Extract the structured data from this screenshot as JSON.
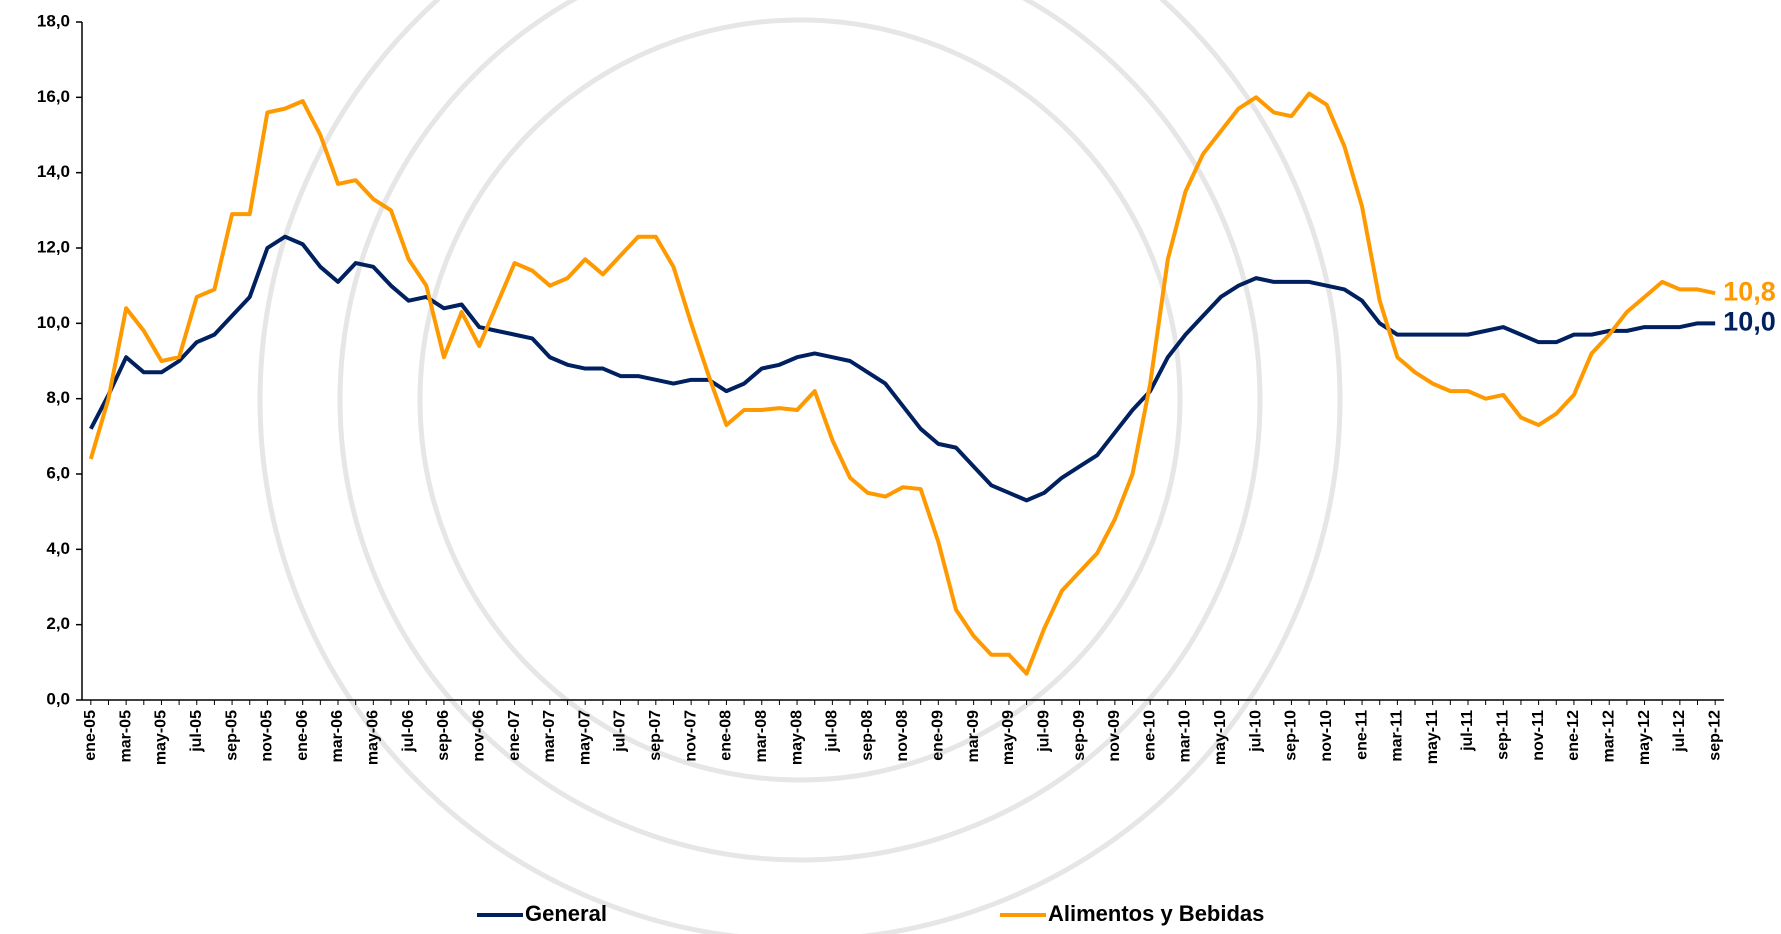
{
  "chart_data": {
    "type": "line",
    "categories": [
      "ene-05",
      null,
      "mar-05",
      null,
      "may-05",
      null,
      "jul-05",
      null,
      "sep-05",
      null,
      "nov-05",
      null,
      "ene-06",
      null,
      "mar-06",
      null,
      "may-06",
      null,
      "jul-06",
      null,
      "sep-06",
      null,
      "nov-06",
      null,
      "ene-07",
      null,
      "mar-07",
      null,
      "may-07",
      null,
      "jul-07",
      null,
      "sep-07",
      null,
      "nov-07",
      null,
      "ene-08",
      null,
      "mar-08",
      null,
      "may-08",
      null,
      "jul-08",
      null,
      "sep-08",
      null,
      "nov-08",
      null,
      "ene-09",
      null,
      "mar-09",
      null,
      "may-09",
      null,
      "jul-09",
      null,
      "sep-09",
      null,
      "nov-09",
      null,
      "ene-10",
      null,
      "mar-10",
      null,
      "may-10",
      null,
      "jul-10",
      null,
      "sep-10",
      null,
      "nov-10",
      null,
      "ene-11",
      null,
      "mar-11",
      null,
      "may-11",
      null,
      "jul-11",
      null,
      "sep-11",
      null,
      "nov-11",
      null,
      "ene-12",
      null,
      "mar-12",
      null,
      "may-12",
      null,
      "jul-12",
      null,
      "sep-12"
    ],
    "series": [
      {
        "name": "General",
        "color": "#002060",
        "values": [
          7.2,
          8.1,
          9.1,
          8.7,
          8.7,
          9.0,
          9.5,
          9.7,
          10.2,
          10.7,
          12.0,
          12.3,
          12.1,
          11.5,
          11.1,
          11.6,
          11.5,
          11.0,
          10.6,
          10.7,
          10.4,
          10.5,
          9.9,
          9.8,
          9.7,
          9.6,
          9.1,
          8.9,
          8.8,
          8.8,
          8.6,
          8.6,
          8.5,
          8.4,
          8.5,
          8.5,
          8.2,
          8.4,
          8.8,
          8.9,
          9.1,
          9.2,
          9.1,
          9.0,
          8.7,
          8.4,
          7.8,
          7.2,
          6.8,
          6.7,
          6.2,
          5.7,
          5.5,
          5.3,
          5.5,
          5.9,
          6.2,
          6.5,
          7.1,
          7.7,
          8.2,
          9.1,
          9.7,
          10.2,
          10.7,
          11.0,
          11.2,
          11.1,
          11.1,
          11.1,
          11.0,
          10.9,
          10.6,
          10.0,
          9.7,
          9.7,
          9.7,
          9.7,
          9.7,
          9.8,
          9.9,
          9.7,
          9.5,
          9.5,
          9.7,
          9.7,
          9.8,
          9.8,
          9.9,
          9.9,
          9.9,
          10.0,
          10.0
        ],
        "value_labels": [
          null,
          null,
          null,
          null,
          null,
          null,
          null,
          null,
          null,
          null,
          null,
          null,
          null,
          null,
          null,
          null,
          null,
          null,
          null,
          null,
          null,
          null,
          null,
          null,
          null,
          null,
          null,
          null,
          null,
          null,
          null,
          null,
          null,
          null,
          null,
          null,
          null,
          null,
          null,
          null,
          null,
          null,
          null,
          null,
          null,
          null,
          null,
          null,
          null,
          null,
          null,
          null,
          null,
          null,
          null,
          null,
          null,
          null,
          null,
          null,
          null,
          null,
          null,
          null,
          null,
          null,
          null,
          null,
          null,
          null,
          null,
          null,
          null,
          null,
          null,
          null,
          null,
          null,
          null,
          null,
          null,
          null,
          null,
          null,
          null,
          null,
          null,
          null,
          null,
          null,
          null,
          null,
          "10,0"
        ]
      },
      {
        "name": "Alimentos y Bebidas",
        "color": "#FF9900",
        "values": [
          6.4,
          8.0,
          10.4,
          9.8,
          9.0,
          9.1,
          10.7,
          10.9,
          12.9,
          12.9,
          15.6,
          15.7,
          15.9,
          15.0,
          13.7,
          13.8,
          13.3,
          13.0,
          11.7,
          11.0,
          9.1,
          10.3,
          9.4,
          10.5,
          11.6,
          11.4,
          11.0,
          11.2,
          11.7,
          11.3,
          11.8,
          12.3,
          12.3,
          11.5,
          10.0,
          8.6,
          7.3,
          7.7,
          7.7,
          7.75,
          7.7,
          8.2,
          6.9,
          5.9,
          5.5,
          5.4,
          5.65,
          5.6,
          4.2,
          2.4,
          1.7,
          1.2,
          1.2,
          0.7,
          1.9,
          2.9,
          3.4,
          3.9,
          4.8,
          6.0,
          8.4,
          11.7,
          13.5,
          14.5,
          15.1,
          15.7,
          16.0,
          15.6,
          15.5,
          16.1,
          15.8,
          14.7,
          13.1,
          10.6,
          9.1,
          8.7,
          8.4,
          8.2,
          8.2,
          8.0,
          8.1,
          7.5,
          7.3,
          7.6,
          8.1,
          9.2,
          9.7,
          10.3,
          10.7,
          11.1,
          10.9,
          10.9,
          10.8
        ],
        "value_labels": [
          null,
          null,
          null,
          null,
          null,
          null,
          null,
          null,
          null,
          null,
          null,
          null,
          null,
          null,
          null,
          null,
          null,
          null,
          null,
          null,
          null,
          null,
          null,
          null,
          null,
          null,
          null,
          null,
          null,
          null,
          null,
          null,
          null,
          null,
          null,
          null,
          null,
          null,
          null,
          null,
          null,
          null,
          null,
          null,
          null,
          null,
          null,
          null,
          null,
          null,
          null,
          null,
          null,
          null,
          null,
          null,
          null,
          null,
          null,
          null,
          null,
          null,
          null,
          null,
          null,
          null,
          null,
          null,
          null,
          null,
          null,
          null,
          null,
          null,
          null,
          null,
          null,
          null,
          null,
          null,
          null,
          null,
          null,
          null,
          null,
          null,
          null,
          null,
          null,
          null,
          null,
          null,
          "10,8"
        ]
      }
    ],
    "ylim": [
      0,
      18
    ],
    "yticks": [
      {
        "value": 0,
        "label": "0,0"
      },
      {
        "value": 2,
        "label": "2,0"
      },
      {
        "value": 4,
        "label": "4,0"
      },
      {
        "value": 6,
        "label": "6,0"
      },
      {
        "value": 8,
        "label": "8,0"
      },
      {
        "value": 10,
        "label": "10,0"
      },
      {
        "value": 12,
        "label": "12,0"
      },
      {
        "value": 14,
        "label": "14,0"
      },
      {
        "value": 16,
        "label": "16,0"
      },
      {
        "value": 18,
        "label": "18,0"
      }
    ],
    "grid": false,
    "legend": "bottom"
  }
}
